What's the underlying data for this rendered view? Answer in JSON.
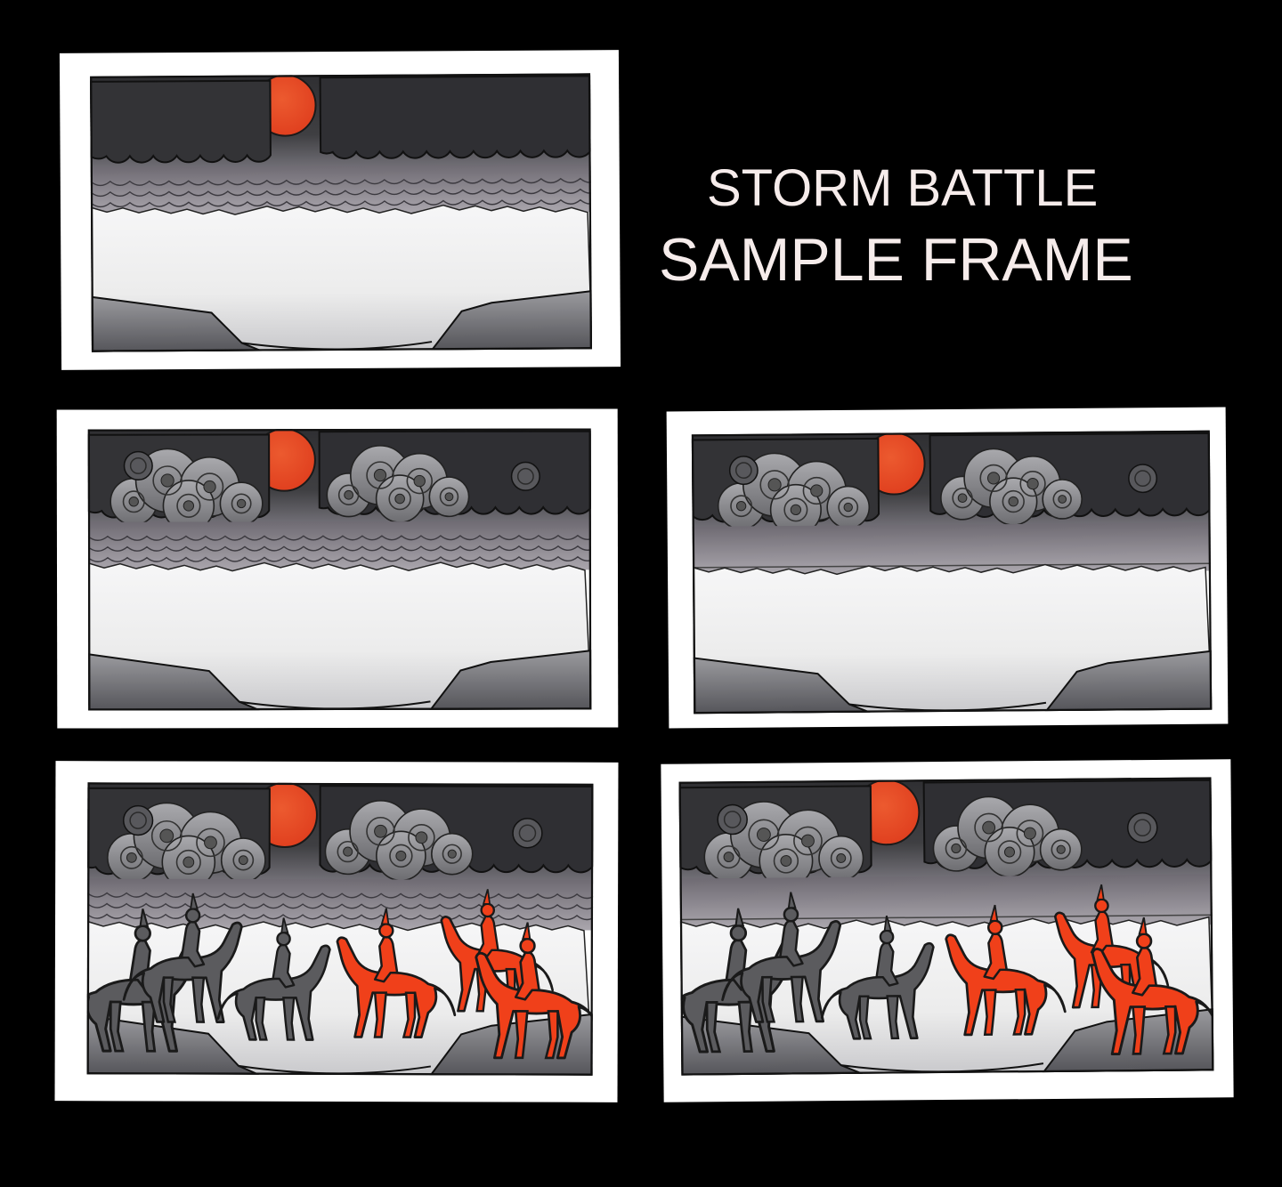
{
  "title": {
    "line1": "STORM BATTLE",
    "line2": "SAMPLE FRAME"
  },
  "colors": {
    "background": "#000000",
    "title_text": "#f6eceb",
    "sun": "#e0401f",
    "red_riders": "#f0401a",
    "dark_riders": "#5b5b5e",
    "storm_sky": "#3f3f42",
    "snow_field": "#ececec"
  },
  "frames": [
    {
      "id": "frame-1",
      "clouds_detailed": false,
      "wave_band": true,
      "riders": false
    },
    {
      "id": "frame-2",
      "clouds_detailed": true,
      "wave_band": true,
      "riders": false
    },
    {
      "id": "frame-3",
      "clouds_detailed": true,
      "wave_band": false,
      "riders": false
    },
    {
      "id": "frame-4",
      "clouds_detailed": true,
      "wave_band": true,
      "riders": true
    },
    {
      "id": "frame-5",
      "clouds_detailed": true,
      "wave_band": false,
      "riders": true
    }
  ]
}
